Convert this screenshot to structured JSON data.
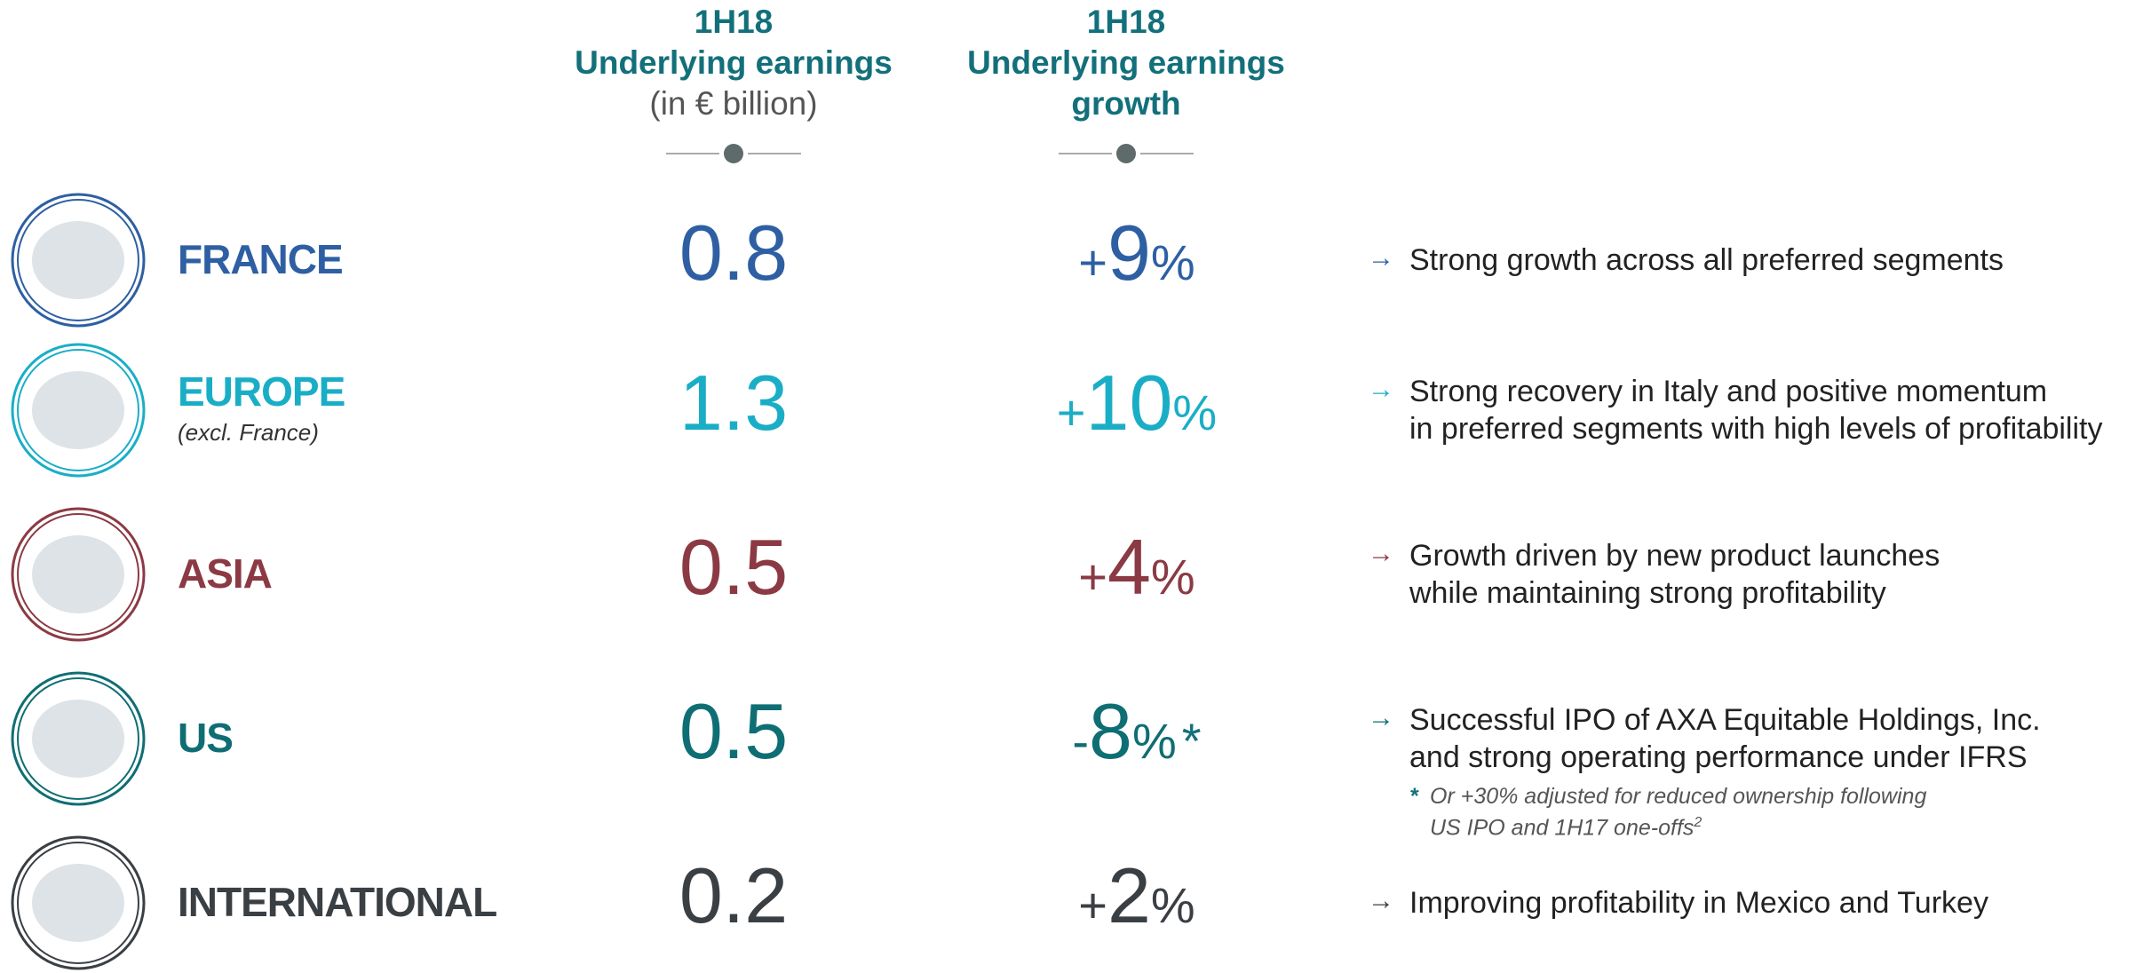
{
  "header": {
    "col1": [
      "1H18",
      "Underlying earnings",
      "(in € billion)"
    ],
    "col2": [
      "1H18",
      "Underlying earnings",
      "growth"
    ]
  },
  "rows": [
    {
      "region": "FRANCE",
      "color": "#2e5fa3",
      "earnings": "0.8",
      "sign": "+",
      "growth": "9",
      "unit": "%",
      "comment": [
        "Strong growth across all preferred segments"
      ]
    },
    {
      "region": "EUROPE",
      "note": "(excl. France)",
      "color": "#1aaec6",
      "earnings": "1.3",
      "sign": "+",
      "growth": "10",
      "unit": "%",
      "comment": [
        "Strong recovery in Italy and positive momentum",
        "in preferred segments with high levels of profitability"
      ]
    },
    {
      "region": "ASIA",
      "color": "#8b3a44",
      "earnings": "0.5",
      "sign": "+",
      "growth": "4",
      "unit": "%",
      "comment": [
        "Growth driven by new product launches",
        "while maintaining strong profitability"
      ]
    },
    {
      "region": "US",
      "color": "#0f6e74",
      "earnings": "0.5",
      "sign": "-",
      "growth": "8",
      "unit": "%",
      "star": "*",
      "comment": [
        "Successful IPO of AXA Equitable Holdings, Inc.",
        "and strong operating performance under IFRS"
      ],
      "footnote": {
        "star": "*",
        "lines": [
          "Or +30% adjusted for reduced ownership following",
          "US IPO and 1H17 one-offs"
        ],
        "sup": "2"
      }
    },
    {
      "region": "INTERNATIONAL",
      "color": "#3a3f44",
      "earnings": "0.2",
      "sign": "+",
      "growth": "2",
      "unit": "%",
      "comment": [
        "Improving profitability in Mexico and Turkey"
      ]
    }
  ]
}
